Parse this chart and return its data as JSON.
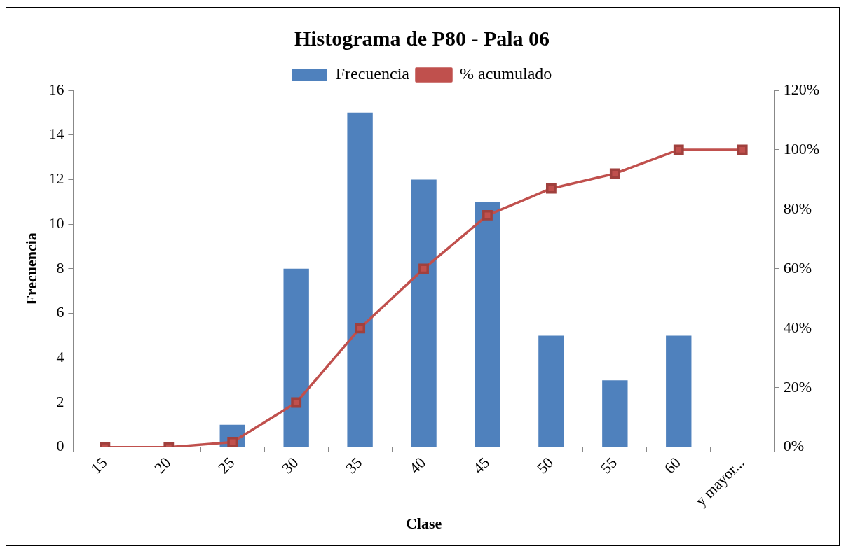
{
  "chart_data": {
    "type": "bar",
    "title": "Histograma de P80 - Pala 06",
    "xlabel": "Clase",
    "ylabel": "Frecuencia",
    "categories": [
      "15",
      "20",
      "25",
      "30",
      "35",
      "40",
      "45",
      "50",
      "55",
      "60",
      "y mayor..."
    ],
    "series": [
      {
        "name": "Frecuencia",
        "color": "#4f81bd",
        "values": [
          0,
          0,
          1,
          8,
          15,
          12,
          11,
          5,
          3,
          5,
          0
        ]
      },
      {
        "name": "% acumulado",
        "type": "line",
        "axis": "y2",
        "color": "#c0504d",
        "marker": "square",
        "values": [
          0,
          0,
          1.7,
          15,
          40,
          60,
          78,
          87,
          92,
          100,
          100
        ]
      }
    ],
    "ylim": [
      0,
      16
    ],
    "yticks": [
      0,
      2,
      4,
      6,
      8,
      10,
      12,
      14,
      16
    ],
    "y2lim": [
      0,
      120
    ],
    "y2ticks": [
      {
        "value": 0,
        "label": "0%"
      },
      {
        "value": 20,
        "label": "20%"
      },
      {
        "value": 40,
        "label": "40%"
      },
      {
        "value": 60,
        "label": "60%"
      },
      {
        "value": 80,
        "label": "80%"
      },
      {
        "value": 100,
        "label": "100%"
      },
      {
        "value": 120,
        "label": "120%"
      }
    ],
    "grid": false,
    "legend": "top"
  }
}
